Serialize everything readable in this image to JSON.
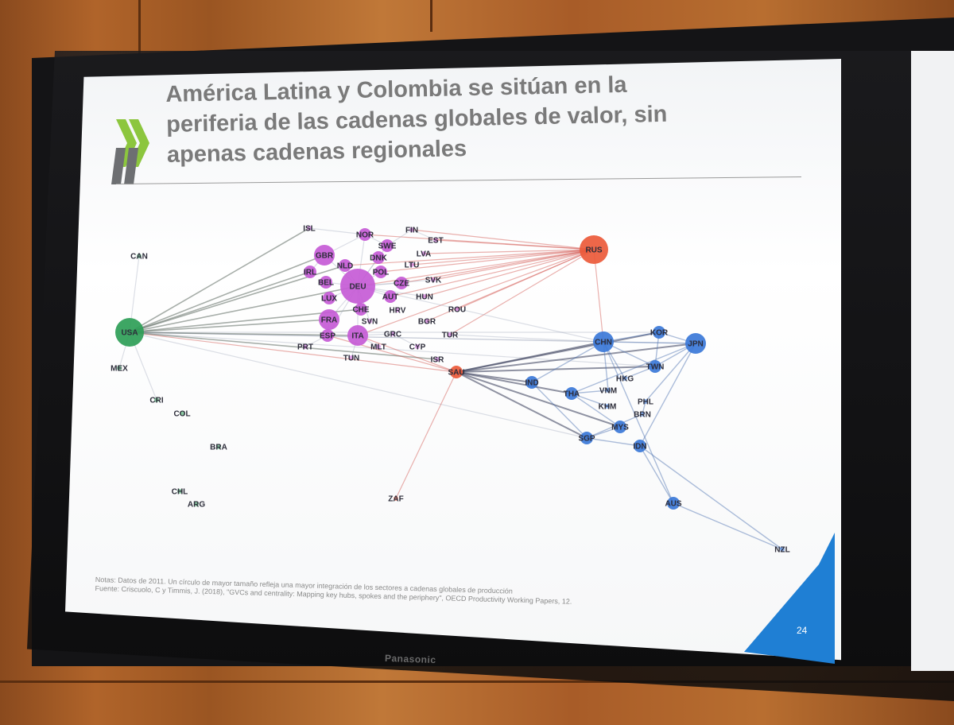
{
  "slide": {
    "title_line1": "América Latina y Colombia se sitúan en la",
    "title_line2": "periferia de las cadenas globales de valor, sin",
    "title_line3": "apenas cadenas regionales",
    "notes_line1": "Notas: Datos de 2011. Un círculo de mayor tamaño refleja una mayor integración de los sectores a cadenas globales de producción",
    "notes_line2": "Fuente: Criscuolo, C y Timmis, J. (2018), \"GVCs and centrality: Mapping key hubs, spokes and the periphery\", OECD Productivity Working Papers, 12.",
    "page_number": "24",
    "logo_icon": "oecd-chevrons-icon"
  },
  "monitor": {
    "brand": "Panasonic"
  },
  "colors": {
    "europe": "#c65bd6",
    "americas": "#2e9e57",
    "hub_red": "#ec5a3a",
    "asia": "#3b78d8",
    "corner": "#1f7fd4"
  },
  "network": {
    "nodes": [
      {
        "id": "USA",
        "label": "USA",
        "group": "americas",
        "size": "large"
      },
      {
        "id": "CAN",
        "label": "CAN",
        "group": "americas",
        "size": "tiny"
      },
      {
        "id": "MEX",
        "label": "MEX",
        "group": "americas",
        "size": "tiny"
      },
      {
        "id": "CRI",
        "label": "CRI",
        "group": "americas",
        "size": "tiny"
      },
      {
        "id": "COL",
        "label": "COL",
        "group": "americas",
        "size": "tiny"
      },
      {
        "id": "BRA",
        "label": "BRA",
        "group": "americas",
        "size": "tiny"
      },
      {
        "id": "CHL",
        "label": "CHL",
        "group": "americas",
        "size": "tiny"
      },
      {
        "id": "ARG",
        "label": "ARG",
        "group": "americas",
        "size": "tiny"
      },
      {
        "id": "ISL",
        "label": "ISL",
        "group": "europe",
        "size": "tiny"
      },
      {
        "id": "NOR",
        "label": "NOR",
        "group": "europe",
        "size": "small"
      },
      {
        "id": "FIN",
        "label": "FIN",
        "group": "europe",
        "size": "tiny"
      },
      {
        "id": "EST",
        "label": "EST",
        "group": "europe",
        "size": "tiny"
      },
      {
        "id": "SWE",
        "label": "SWE",
        "group": "europe",
        "size": "small"
      },
      {
        "id": "GBR",
        "label": "GBR",
        "group": "europe",
        "size": "medium"
      },
      {
        "id": "LVA",
        "label": "LVA",
        "group": "europe",
        "size": "tiny"
      },
      {
        "id": "DNK",
        "label": "DNK",
        "group": "europe",
        "size": "small"
      },
      {
        "id": "NLD",
        "label": "NLD",
        "group": "europe",
        "size": "small"
      },
      {
        "id": "LTU",
        "label": "LTU",
        "group": "europe",
        "size": "tiny"
      },
      {
        "id": "POL",
        "label": "POL",
        "group": "europe",
        "size": "small"
      },
      {
        "id": "IRL",
        "label": "IRL",
        "group": "europe",
        "size": "small"
      },
      {
        "id": "BEL",
        "label": "BEL",
        "group": "europe",
        "size": "small"
      },
      {
        "id": "DEU",
        "label": "DEU",
        "group": "europe",
        "size": "xlarge"
      },
      {
        "id": "CZE",
        "label": "CZE",
        "group": "europe",
        "size": "small"
      },
      {
        "id": "SVK",
        "label": "SVK",
        "group": "europe",
        "size": "tiny"
      },
      {
        "id": "LUX",
        "label": "LUX",
        "group": "europe",
        "size": "small"
      },
      {
        "id": "AUT",
        "label": "AUT",
        "group": "europe",
        "size": "small"
      },
      {
        "id": "HUN",
        "label": "HUN",
        "group": "europe",
        "size": "tiny"
      },
      {
        "id": "CHE",
        "label": "CHE",
        "group": "europe",
        "size": "small"
      },
      {
        "id": "HRV",
        "label": "HRV",
        "group": "europe",
        "size": "tiny"
      },
      {
        "id": "ROU",
        "label": "ROU",
        "group": "europe",
        "size": "tiny"
      },
      {
        "id": "FRA",
        "label": "FRA",
        "group": "europe",
        "size": "medium"
      },
      {
        "id": "SVN",
        "label": "SVN",
        "group": "europe",
        "size": "tiny"
      },
      {
        "id": "BGR",
        "label": "BGR",
        "group": "europe",
        "size": "tiny"
      },
      {
        "id": "ITA",
        "label": "ITA",
        "group": "europe",
        "size": "medium"
      },
      {
        "id": "ESP",
        "label": "ESP",
        "group": "europe",
        "size": "small"
      },
      {
        "id": "GRC",
        "label": "GRC",
        "group": "europe",
        "size": "tiny"
      },
      {
        "id": "TUR",
        "label": "TUR",
        "group": "europe",
        "size": "tiny"
      },
      {
        "id": "PRT",
        "label": "PRT",
        "group": "europe",
        "size": "tiny"
      },
      {
        "id": "MLT",
        "label": "MLT",
        "group": "europe",
        "size": "tiny"
      },
      {
        "id": "CYP",
        "label": "CYP",
        "group": "europe",
        "size": "tiny"
      },
      {
        "id": "TUN",
        "label": "TUN",
        "group": "europe",
        "size": "tiny"
      },
      {
        "id": "ISR",
        "label": "ISR",
        "group": "europe",
        "size": "tiny"
      },
      {
        "id": "RUS",
        "label": "RUS",
        "group": "hub_red",
        "size": "large"
      },
      {
        "id": "SAU",
        "label": "SAU",
        "group": "hub_red",
        "size": "small"
      },
      {
        "id": "ZAF",
        "label": "ZAF",
        "group": "hub_red",
        "size": "tiny"
      },
      {
        "id": "CHN",
        "label": "CHN",
        "group": "asia",
        "size": "medium"
      },
      {
        "id": "KOR",
        "label": "KOR",
        "group": "asia",
        "size": "small"
      },
      {
        "id": "JPN",
        "label": "JPN",
        "group": "asia",
        "size": "medium"
      },
      {
        "id": "TWN",
        "label": "TWN",
        "group": "asia",
        "size": "small"
      },
      {
        "id": "HKG",
        "label": "HKG",
        "group": "asia",
        "size": "tiny"
      },
      {
        "id": "IND",
        "label": "IND",
        "group": "asia",
        "size": "small"
      },
      {
        "id": "THA",
        "label": "THA",
        "group": "asia",
        "size": "small"
      },
      {
        "id": "VNM",
        "label": "VNM",
        "group": "asia",
        "size": "tiny"
      },
      {
        "id": "PHL",
        "label": "PHL",
        "group": "asia",
        "size": "tiny"
      },
      {
        "id": "KHM",
        "label": "KHM",
        "group": "asia",
        "size": "tiny"
      },
      {
        "id": "BRN",
        "label": "BRN",
        "group": "asia",
        "size": "tiny"
      },
      {
        "id": "MYS",
        "label": "MYS",
        "group": "asia",
        "size": "small"
      },
      {
        "id": "SGP",
        "label": "SGP",
        "group": "asia",
        "size": "small"
      },
      {
        "id": "IDN",
        "label": "IDN",
        "group": "asia",
        "size": "small"
      },
      {
        "id": "AUS",
        "label": "AUS",
        "group": "asia",
        "size": "small"
      },
      {
        "id": "NZL",
        "label": "NZL",
        "group": "asia",
        "size": "tiny"
      }
    ],
    "edges": [
      [
        "USA",
        "CAN"
      ],
      [
        "USA",
        "MEX"
      ],
      [
        "USA",
        "CRI"
      ],
      [
        "USA",
        "DEU"
      ],
      [
        "USA",
        "GBR"
      ],
      [
        "USA",
        "IRL"
      ],
      [
        "USA",
        "ISL"
      ],
      [
        "USA",
        "NLD"
      ],
      [
        "USA",
        "CHE"
      ],
      [
        "USA",
        "FRA"
      ],
      [
        "USA",
        "CHN"
      ],
      [
        "USA",
        "JPN"
      ],
      [
        "USA",
        "KOR"
      ],
      [
        "USA",
        "SAU"
      ],
      [
        "USA",
        "SGP"
      ],
      [
        "USA",
        "TWN"
      ],
      [
        "USA",
        "ISR"
      ],
      [
        "USA",
        "ITA"
      ],
      [
        "RUS",
        "DEU"
      ],
      [
        "RUS",
        "FIN"
      ],
      [
        "RUS",
        "EST"
      ],
      [
        "RUS",
        "LVA"
      ],
      [
        "RUS",
        "LTU"
      ],
      [
        "RUS",
        "POL"
      ],
      [
        "RUS",
        "CZE"
      ],
      [
        "RUS",
        "SVK"
      ],
      [
        "RUS",
        "HUN"
      ],
      [
        "RUS",
        "AUT"
      ],
      [
        "RUS",
        "NLD"
      ],
      [
        "RUS",
        "ROU"
      ],
      [
        "RUS",
        "BGR"
      ],
      [
        "RUS",
        "ITA"
      ],
      [
        "RUS",
        "NOR"
      ],
      [
        "RUS",
        "CHN"
      ],
      [
        "RUS",
        "TUR"
      ],
      [
        "DEU",
        "GBR"
      ],
      [
        "DEU",
        "NLD"
      ],
      [
        "DEU",
        "POL"
      ],
      [
        "DEU",
        "CZE"
      ],
      [
        "DEU",
        "AUT"
      ],
      [
        "DEU",
        "FRA"
      ],
      [
        "DEU",
        "ITA"
      ],
      [
        "DEU",
        "BEL"
      ],
      [
        "DEU",
        "LUX"
      ],
      [
        "DEU",
        "CHE"
      ],
      [
        "DEU",
        "ESP"
      ],
      [
        "DEU",
        "SVN"
      ],
      [
        "DEU",
        "HUN"
      ],
      [
        "DEU",
        "SVK"
      ],
      [
        "DEU",
        "DNK"
      ],
      [
        "DEU",
        "SWE"
      ],
      [
        "DEU",
        "NOR"
      ],
      [
        "DEU",
        "CHN"
      ],
      [
        "ITA",
        "TUN"
      ],
      [
        "ITA",
        "GRC"
      ],
      [
        "ITA",
        "MLT"
      ],
      [
        "FRA",
        "ESP"
      ],
      [
        "ESP",
        "PRT"
      ],
      [
        "GBR",
        "IRL"
      ],
      [
        "GBR",
        "NOR"
      ],
      [
        "NOR",
        "SWE"
      ],
      [
        "SWE",
        "FIN"
      ],
      [
        "FIN",
        "EST"
      ],
      [
        "ISL",
        "NOR"
      ],
      [
        "GRC",
        "CYP"
      ],
      [
        "TUR",
        "CHN"
      ],
      [
        "SAU",
        "CHN"
      ],
      [
        "SAU",
        "IND"
      ],
      [
        "SAU",
        "SGP"
      ],
      [
        "SAU",
        "JPN"
      ],
      [
        "SAU",
        "KOR"
      ],
      [
        "SAU",
        "THA"
      ],
      [
        "SAU",
        "ZAF"
      ],
      [
        "SAU",
        "TWN"
      ],
      [
        "SAU",
        "MYS"
      ],
      [
        "SAU",
        "ITA"
      ],
      [
        "SAU",
        "ESP"
      ],
      [
        "CHN",
        "KOR"
      ],
      [
        "CHN",
        "JPN"
      ],
      [
        "CHN",
        "TWN"
      ],
      [
        "CHN",
        "HKG"
      ],
      [
        "CHN",
        "VNM"
      ],
      [
        "CHN",
        "IND"
      ],
      [
        "CHN",
        "AUS"
      ],
      [
        "KOR",
        "JPN"
      ],
      [
        "KOR",
        "TWN"
      ],
      [
        "JPN",
        "TWN"
      ],
      [
        "JPN",
        "THA"
      ],
      [
        "JPN",
        "PHL"
      ],
      [
        "JPN",
        "IDN"
      ],
      [
        "THA",
        "KHM"
      ],
      [
        "THA",
        "VNM"
      ],
      [
        "THA",
        "MYS"
      ],
      [
        "MYS",
        "SGP"
      ],
      [
        "SGP",
        "IDN"
      ],
      [
        "SGP",
        "BRN"
      ],
      [
        "SGP",
        "IND"
      ],
      [
        "IDN",
        "AUS"
      ],
      [
        "AUS",
        "NZL"
      ],
      [
        "IDN",
        "NZL"
      ],
      [
        "PHL",
        "BRN"
      ],
      [
        "HKG",
        "TWN"
      ]
    ]
  }
}
